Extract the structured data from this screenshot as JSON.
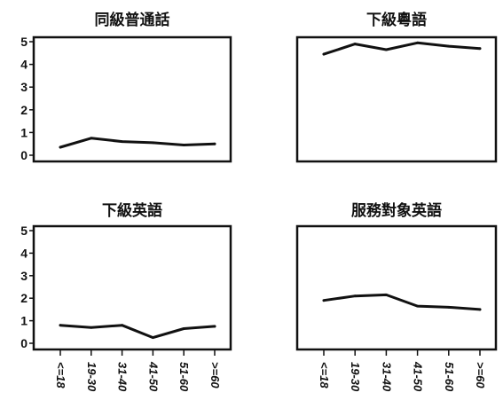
{
  "chart_data": [
    {
      "type": "line",
      "title": "同級普通話",
      "categories": [
        "<=18",
        "19-30",
        "31-40",
        "41-50",
        "51-60",
        ">=60"
      ],
      "values": [
        0.35,
        0.75,
        0.6,
        0.55,
        0.45,
        0.5
      ],
      "ylim": [
        0,
        5
      ],
      "yticks": [
        "0",
        "1",
        "2",
        "3",
        "4",
        "5"
      ],
      "show_x_ticks": false,
      "show_y_ticks": true
    },
    {
      "type": "line",
      "title": "下級粵語",
      "categories": [
        "<=18",
        "19-30",
        "31-40",
        "41-50",
        "51-60",
        ">=60"
      ],
      "values": [
        4.45,
        4.9,
        4.65,
        4.95,
        4.8,
        4.7
      ],
      "ylim": [
        0,
        5
      ],
      "yticks": [
        "0",
        "1",
        "2",
        "3",
        "4",
        "5"
      ],
      "show_x_ticks": false,
      "show_y_ticks": false
    },
    {
      "type": "line",
      "title": "下級英語",
      "categories": [
        "<=18",
        "19-30",
        "31-40",
        "41-50",
        "51-60",
        ">=60"
      ],
      "values": [
        0.8,
        0.7,
        0.8,
        0.25,
        0.65,
        0.75
      ],
      "ylim": [
        0,
        5
      ],
      "yticks": [
        "0",
        "1",
        "2",
        "3",
        "4",
        "5"
      ],
      "show_x_ticks": true,
      "show_y_ticks": true
    },
    {
      "type": "line",
      "title": "服務對象英語",
      "categories": [
        "<=18",
        "19-30",
        "31-40",
        "41-50",
        "51-60",
        ">=60"
      ],
      "values": [
        1.9,
        2.1,
        2.15,
        1.65,
        1.6,
        1.5
      ],
      "ylim": [
        0,
        5
      ],
      "yticks": [
        "0",
        "1",
        "2",
        "3",
        "4",
        "5"
      ],
      "show_x_ticks": true,
      "show_y_ticks": false
    }
  ],
  "style": {
    "line_color": "#111111",
    "axis_color": "#111111",
    "background": "#ffffff"
  }
}
